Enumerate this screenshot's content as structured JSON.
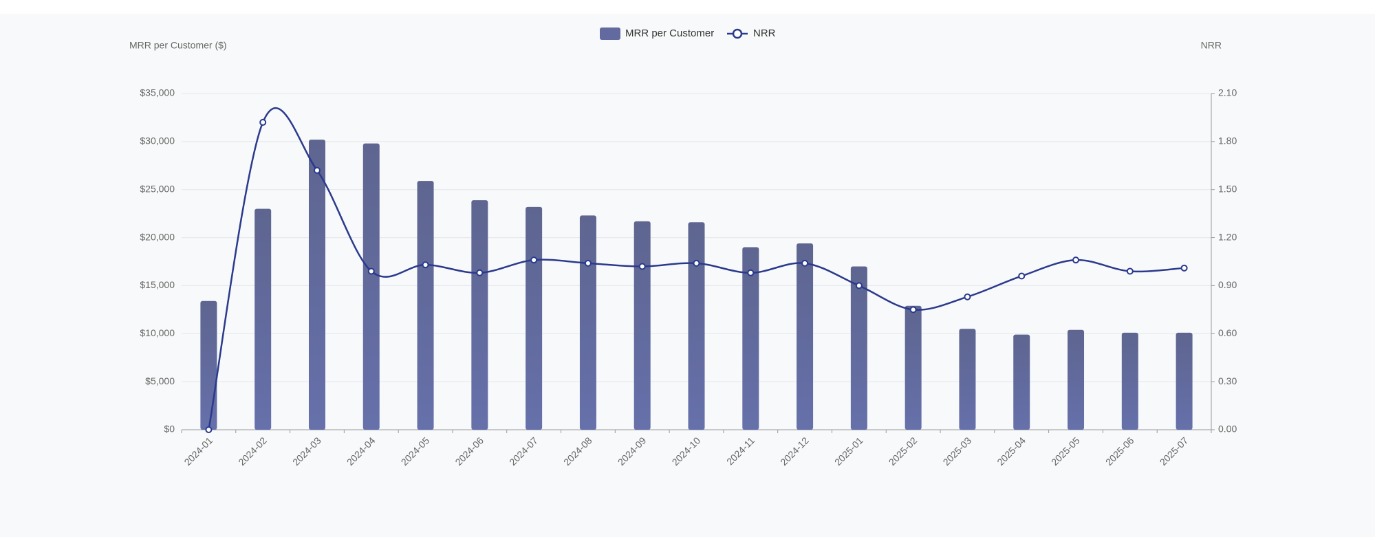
{
  "chart_data": {
    "type": "bar-line",
    "y_axis_title": "MRR per Customer ($)",
    "y2_axis_title": "NRR",
    "categories": [
      "2024-01",
      "2024-02",
      "2024-03",
      "2024-04",
      "2024-05",
      "2024-06",
      "2024-07",
      "2024-08",
      "2024-09",
      "2024-10",
      "2024-11",
      "2024-12",
      "2025-01",
      "2025-02",
      "2025-03",
      "2025-04",
      "2025-05",
      "2025-06",
      "2025-07"
    ],
    "series": [
      {
        "name": "MRR per Customer",
        "type": "bar",
        "color": "#626aa0",
        "values": [
          13400,
          23000,
          30200,
          29800,
          25900,
          23900,
          23200,
          22300,
          21700,
          21600,
          19000,
          19400,
          17000,
          12900,
          10500,
          9900,
          10400,
          10100,
          10100
        ]
      },
      {
        "name": "NRR",
        "type": "line",
        "axis": "y2",
        "color": "#2b3a8c",
        "values": [
          0,
          1.92,
          1.62,
          0.99,
          1.03,
          0.98,
          1.06,
          1.04,
          1.02,
          1.04,
          0.98,
          1.04,
          0.9,
          0.75,
          0.83,
          0.96,
          1.06,
          0.99,
          1.01
        ]
      }
    ],
    "ylim": [
      0,
      35000
    ],
    "yticks": [
      {
        "value": 0,
        "label": "$0"
      },
      {
        "value": 5000,
        "label": "$5,000"
      },
      {
        "value": 10000,
        "label": "$10,000"
      },
      {
        "value": 15000,
        "label": "$15,000"
      },
      {
        "value": 20000,
        "label": "$20,000"
      },
      {
        "value": 25000,
        "label": "$25,000"
      },
      {
        "value": 30000,
        "label": "$30,000"
      },
      {
        "value": 35000,
        "label": "$35,000"
      }
    ],
    "y2lim": [
      0,
      2.1
    ],
    "y2ticks": [
      {
        "value": 0,
        "label": "0.00"
      },
      {
        "value": 0.3,
        "label": "0.30"
      },
      {
        "value": 0.6,
        "label": "0.60"
      },
      {
        "value": 0.9,
        "label": "0.90"
      },
      {
        "value": 1.2,
        "label": "1.20"
      },
      {
        "value": 1.5,
        "label": "1.50"
      },
      {
        "value": 1.8,
        "label": "1.80"
      },
      {
        "value": 2.1,
        "label": "2.10"
      }
    ],
    "grid": true,
    "legend": "top"
  }
}
